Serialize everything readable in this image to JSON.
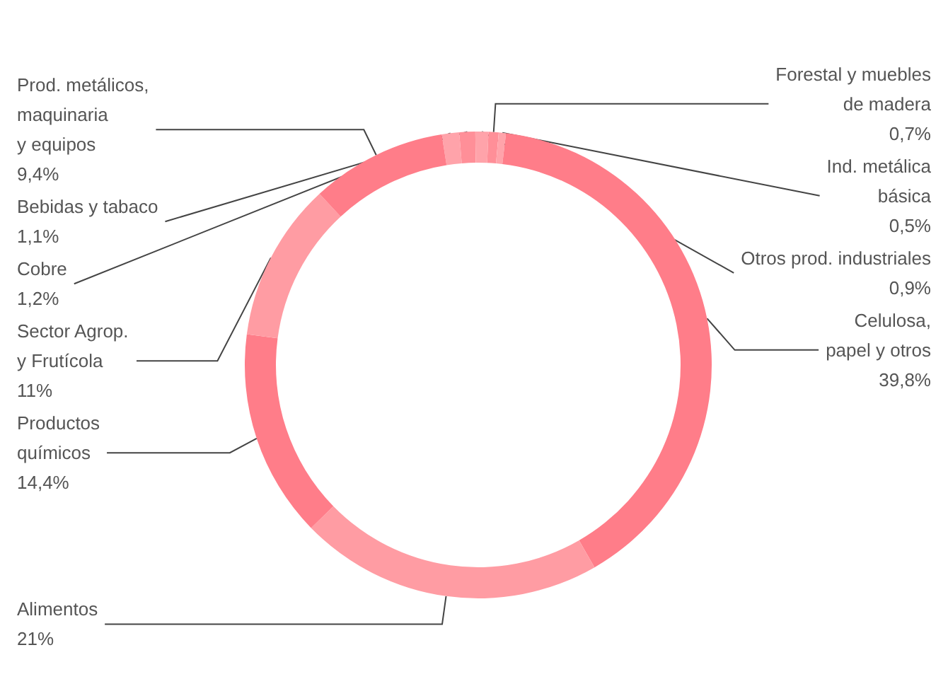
{
  "chart_data": {
    "type": "donut",
    "categories": [
      "Cobre",
      "Bebidas y tabaco",
      "Otros prod. industriales",
      "Forestal y muebles\nde madera",
      "Ind. metálica\nbásica",
      "Celulosa,\npapel y otros",
      "Alimentos",
      "Productos\nquímicos",
      "Sector Agrop.\ny Frutícola",
      "Prod. metálicos,\nmaquinaria\ny equipos"
    ],
    "values": [
      1.2,
      1.1,
      0.9,
      0.7,
      0.5,
      39.8,
      21,
      14.4,
      11,
      9.4
    ],
    "value_labels": [
      "1,2%",
      "1,1%",
      "0,9%",
      "0,7%",
      "0,5%",
      "39,8%",
      "21%",
      "14,4%",
      "11%",
      "9,4%"
    ],
    "colors": [
      "#ffa3aa",
      "#ff8f98",
      "#ffa3aa",
      "#ff8f98",
      "#ffa3aa",
      "#ff7d89",
      "#ff9ca3",
      "#ff7d89",
      "#ff9ca3",
      "#ff7d89"
    ],
    "legend": false
  }
}
